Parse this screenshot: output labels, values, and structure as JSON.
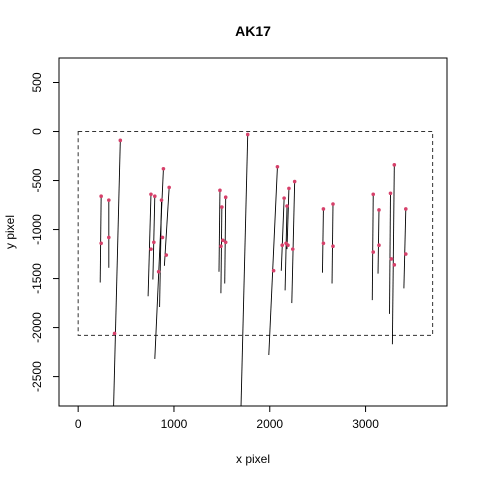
{
  "chart_data": {
    "type": "scatter",
    "title": "AK17",
    "xlabel": "x pixel",
    "ylabel": "y pixel",
    "xlim": [
      -200,
      3850
    ],
    "ylim": [
      -2800,
      750
    ],
    "x_ticks": [
      0,
      1000,
      2000,
      3000
    ],
    "y_ticks": [
      500,
      0,
      -500,
      -1000,
      -1500,
      -2000,
      -2500
    ],
    "colors": {
      "point": "#d6406a",
      "segment": "#000000",
      "frame": "#000000",
      "boundary": "#333333"
    },
    "boundary": {
      "x": [
        0,
        3700
      ],
      "y": [
        -2080,
        0
      ],
      "style": "dashed"
    },
    "series": [
      {
        "points": [
          {
            "x": 240,
            "y": -660
          },
          {
            "x": 240,
            "y": -1140
          },
          {
            "x": 320,
            "y": -700
          },
          {
            "x": 320,
            "y": -1080
          },
          {
            "x": 380,
            "y": -2060
          },
          {
            "x": 440,
            "y": -90
          },
          {
            "x": 760,
            "y": -640
          },
          {
            "x": 760,
            "y": -1200
          },
          {
            "x": 800,
            "y": -660
          },
          {
            "x": 790,
            "y": -1130
          },
          {
            "x": 840,
            "y": -1430
          },
          {
            "x": 870,
            "y": -700
          },
          {
            "x": 880,
            "y": -1080
          },
          {
            "x": 890,
            "y": -380
          },
          {
            "x": 920,
            "y": -1260
          },
          {
            "x": 950,
            "y": -570
          },
          {
            "x": 1480,
            "y": -600
          },
          {
            "x": 1490,
            "y": -1170
          },
          {
            "x": 1500,
            "y": -770
          },
          {
            "x": 1510,
            "y": -1110
          },
          {
            "x": 1540,
            "y": -670
          },
          {
            "x": 1540,
            "y": -1130
          },
          {
            "x": 1770,
            "y": -30
          },
          {
            "x": 2040,
            "y": -1420
          },
          {
            "x": 2080,
            "y": -360
          },
          {
            "x": 2130,
            "y": -1160
          },
          {
            "x": 2150,
            "y": -680
          },
          {
            "x": 2170,
            "y": -1140
          },
          {
            "x": 2180,
            "y": -760
          },
          {
            "x": 2190,
            "y": -1160
          },
          {
            "x": 2200,
            "y": -580
          },
          {
            "x": 2240,
            "y": -1200
          },
          {
            "x": 2260,
            "y": -510
          },
          {
            "x": 2560,
            "y": -790
          },
          {
            "x": 2560,
            "y": -1140
          },
          {
            "x": 2660,
            "y": -740
          },
          {
            "x": 2660,
            "y": -1170
          },
          {
            "x": 3080,
            "y": -640
          },
          {
            "x": 3080,
            "y": -1230
          },
          {
            "x": 3140,
            "y": -800
          },
          {
            "x": 3140,
            "y": -1160
          },
          {
            "x": 3260,
            "y": -630
          },
          {
            "x": 3270,
            "y": -1300
          },
          {
            "x": 3300,
            "y": -340
          },
          {
            "x": 3300,
            "y": -1360
          },
          {
            "x": 3420,
            "y": -790
          },
          {
            "x": 3420,
            "y": -1250
          }
        ]
      }
    ],
    "segments": [
      {
        "x1": 230,
        "y1": -1540,
        "x2": 240,
        "y2": -660
      },
      {
        "x1": 320,
        "y1": -1390,
        "x2": 320,
        "y2": -700
      },
      {
        "x1": 370,
        "y1": -2800,
        "x2": 440,
        "y2": -90
      },
      {
        "x1": 730,
        "y1": -1680,
        "x2": 760,
        "y2": -640
      },
      {
        "x1": 780,
        "y1": -1510,
        "x2": 800,
        "y2": -660
      },
      {
        "x1": 800,
        "y1": -2320,
        "x2": 890,
        "y2": -380
      },
      {
        "x1": 850,
        "y1": -1790,
        "x2": 870,
        "y2": -700
      },
      {
        "x1": 900,
        "y1": -1370,
        "x2": 950,
        "y2": -570
      },
      {
        "x1": 1470,
        "y1": -1430,
        "x2": 1480,
        "y2": -600
      },
      {
        "x1": 1490,
        "y1": -1650,
        "x2": 1500,
        "y2": -770
      },
      {
        "x1": 1530,
        "y1": -1550,
        "x2": 1540,
        "y2": -670
      },
      {
        "x1": 1700,
        "y1": -2800,
        "x2": 1770,
        "y2": -30
      },
      {
        "x1": 1990,
        "y1": -2280,
        "x2": 2080,
        "y2": -360
      },
      {
        "x1": 2120,
        "y1": -1420,
        "x2": 2150,
        "y2": -680
      },
      {
        "x1": 2160,
        "y1": -1620,
        "x2": 2180,
        "y2": -760
      },
      {
        "x1": 2180,
        "y1": -1200,
        "x2": 2200,
        "y2": -580
      },
      {
        "x1": 2230,
        "y1": -1750,
        "x2": 2260,
        "y2": -510
      },
      {
        "x1": 2550,
        "y1": -1440,
        "x2": 2560,
        "y2": -790
      },
      {
        "x1": 2650,
        "y1": -1550,
        "x2": 2660,
        "y2": -740
      },
      {
        "x1": 3070,
        "y1": -1720,
        "x2": 3080,
        "y2": -640
      },
      {
        "x1": 3130,
        "y1": -1450,
        "x2": 3140,
        "y2": -800
      },
      {
        "x1": 3250,
        "y1": -1860,
        "x2": 3260,
        "y2": -630
      },
      {
        "x1": 3280,
        "y1": -2170,
        "x2": 3300,
        "y2": -340
      },
      {
        "x1": 3400,
        "y1": -1600,
        "x2": 3420,
        "y2": -790
      }
    ]
  }
}
